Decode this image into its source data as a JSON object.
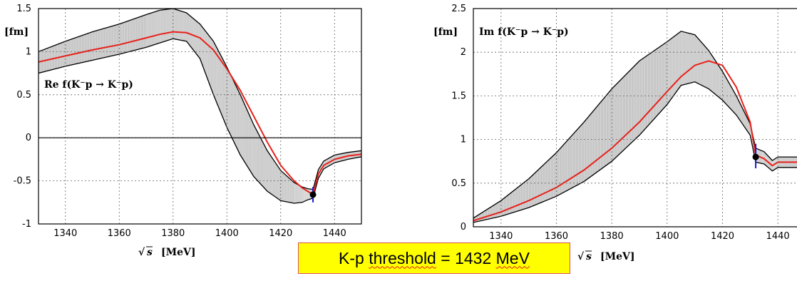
{
  "chart_data": [
    {
      "type": "line",
      "panel_label": "Re f(K⁻p → K⁻p)",
      "ylabel": "[fm]",
      "xlabel_root": "s",
      "xlabel_unit": "[MeV]",
      "xlim": [
        1330,
        1450
      ],
      "ylim": [
        -1,
        1.5
      ],
      "xticks": [
        "1340",
        "1360",
        "1380",
        "1400",
        "1420",
        "1440"
      ],
      "xtick_values": [
        1340,
        1360,
        1380,
        1400,
        1420,
        1440
      ],
      "yticks": [
        "-1",
        "-0.5",
        "0",
        "0.5",
        "1",
        "1.5"
      ],
      "ytick_values": [
        -1,
        -0.5,
        0,
        0.5,
        1,
        1.5
      ],
      "grid": true,
      "zero_line": true,
      "colors": {
        "band": "#c8c8c8",
        "central": "#e8201a",
        "band_edge": "#000000",
        "point": "#000000",
        "error_bar": "#1a1acc"
      },
      "series": [
        {
          "role": "central",
          "x": [
            1330,
            1340,
            1350,
            1360,
            1370,
            1375,
            1380,
            1385,
            1390,
            1395,
            1400,
            1405,
            1410,
            1415,
            1420,
            1425,
            1428,
            1430,
            1432,
            1434,
            1436,
            1440,
            1445,
            1450
          ],
          "y": [
            0.88,
            0.95,
            1.02,
            1.08,
            1.16,
            1.2,
            1.23,
            1.22,
            1.16,
            1.02,
            0.8,
            0.55,
            0.25,
            -0.05,
            -0.32,
            -0.5,
            -0.58,
            -0.62,
            -0.66,
            -0.42,
            -0.32,
            -0.25,
            -0.21,
            -0.19
          ]
        },
        {
          "role": "band_upper",
          "x": [
            1330,
            1340,
            1350,
            1360,
            1370,
            1375,
            1380,
            1385,
            1390,
            1395,
            1400,
            1405,
            1410,
            1415,
            1420,
            1425,
            1428,
            1430,
            1432,
            1434,
            1436,
            1440,
            1445,
            1450
          ],
          "y": [
            1.0,
            1.12,
            1.23,
            1.32,
            1.43,
            1.48,
            1.5,
            1.45,
            1.32,
            1.12,
            0.82,
            0.5,
            0.15,
            -0.15,
            -0.38,
            -0.52,
            -0.57,
            -0.59,
            -0.6,
            -0.37,
            -0.27,
            -0.2,
            -0.17,
            -0.15
          ]
        },
        {
          "role": "band_lower",
          "x": [
            1330,
            1340,
            1350,
            1360,
            1370,
            1375,
            1380,
            1385,
            1390,
            1395,
            1400,
            1405,
            1410,
            1415,
            1420,
            1425,
            1428,
            1430,
            1432,
            1434,
            1436,
            1440,
            1445,
            1450
          ],
          "y": [
            0.75,
            0.83,
            0.9,
            0.97,
            1.05,
            1.1,
            1.15,
            1.12,
            0.92,
            0.5,
            0.12,
            -0.2,
            -0.45,
            -0.62,
            -0.73,
            -0.76,
            -0.75,
            -0.72,
            -0.7,
            -0.47,
            -0.36,
            -0.29,
            -0.25,
            -0.22
          ]
        }
      ],
      "threshold_point": {
        "x": 1432,
        "y": -0.66,
        "err_low": -0.75,
        "err_high": -0.57
      }
    },
    {
      "type": "line",
      "panel_label": "Im f(K⁻p → K⁻p)",
      "ylabel": "[fm]",
      "xlabel_root": "s",
      "xlabel_unit": "[MeV]",
      "xlim": [
        1330,
        1450
      ],
      "ylim": [
        0,
        2.5
      ],
      "xticks": [
        "1340",
        "1360",
        "1380",
        "1400",
        "1420",
        "1440"
      ],
      "xtick_values": [
        1340,
        1360,
        1380,
        1400,
        1420,
        1440
      ],
      "yticks": [
        "0",
        "0.5",
        "1",
        "1.5",
        "2",
        "2.5"
      ],
      "ytick_values": [
        0,
        0.5,
        1,
        1.5,
        2,
        2.5
      ],
      "grid": true,
      "zero_line": false,
      "colors": {
        "band": "#c8c8c8",
        "central": "#e8201a",
        "band_edge": "#000000",
        "point": "#000000",
        "error_bar": "#1a1acc"
      },
      "series": [
        {
          "role": "central",
          "x": [
            1330,
            1340,
            1350,
            1360,
            1370,
            1380,
            1390,
            1400,
            1405,
            1410,
            1415,
            1420,
            1425,
            1430,
            1432,
            1435,
            1438,
            1440,
            1445,
            1450
          ],
          "y": [
            0.07,
            0.17,
            0.3,
            0.45,
            0.65,
            0.9,
            1.2,
            1.55,
            1.72,
            1.85,
            1.9,
            1.85,
            1.6,
            1.2,
            0.82,
            0.78,
            0.7,
            0.74,
            0.74,
            0.74
          ]
        },
        {
          "role": "band_upper",
          "x": [
            1330,
            1340,
            1350,
            1360,
            1370,
            1380,
            1390,
            1400,
            1405,
            1410,
            1415,
            1420,
            1425,
            1430,
            1432,
            1435,
            1438,
            1440,
            1445,
            1450
          ],
          "y": [
            0.1,
            0.3,
            0.55,
            0.85,
            1.2,
            1.58,
            1.9,
            2.12,
            2.24,
            2.2,
            2.02,
            1.78,
            1.5,
            1.18,
            0.9,
            0.86,
            0.76,
            0.8,
            0.8,
            0.8
          ]
        },
        {
          "role": "band_lower",
          "x": [
            1330,
            1340,
            1350,
            1360,
            1370,
            1380,
            1390,
            1400,
            1405,
            1410,
            1415,
            1420,
            1425,
            1430,
            1432,
            1435,
            1438,
            1440,
            1445,
            1450
          ],
          "y": [
            0.05,
            0.12,
            0.22,
            0.35,
            0.52,
            0.75,
            1.05,
            1.4,
            1.62,
            1.66,
            1.58,
            1.45,
            1.28,
            1.05,
            0.74,
            0.72,
            0.64,
            0.68,
            0.68,
            0.68
          ]
        }
      ],
      "threshold_point": {
        "x": 1432,
        "y": 0.8,
        "err_low": 0.67,
        "err_high": 0.95
      }
    }
  ],
  "note": {
    "prefix": "K-p ",
    "underlined": "threshold",
    "suffix": " = 1432 ",
    "unit": "MeV"
  }
}
